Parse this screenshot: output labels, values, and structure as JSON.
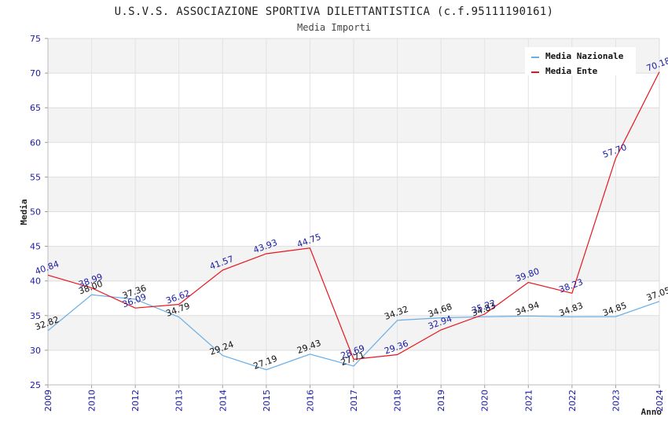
{
  "chart_data": {
    "type": "line",
    "title": "U.S.V.S. ASSOCIAZIONE SPORTIVA DILETTANTISTICA (c.f.95111190161)",
    "subtitle": "Media Importi",
    "xlabel": "Anno",
    "ylabel": "Media",
    "ylim": [
      25,
      75
    ],
    "yticks": [
      "25",
      "30",
      "35",
      "40",
      "45",
      "50",
      "55",
      "60",
      "65",
      "70",
      "75"
    ],
    "categories": [
      "2009",
      "2010",
      "2012",
      "2013",
      "2014",
      "2015",
      "2016",
      "2017",
      "2018",
      "2019",
      "2020",
      "2021",
      "2022",
      "2023",
      "2024"
    ],
    "series": [
      {
        "name": "Media Nazionale",
        "color": "#6aaee6",
        "values": [
          32.82,
          38.0,
          37.36,
          34.79,
          29.24,
          27.19,
          29.43,
          27.71,
          34.32,
          34.68,
          34.83,
          34.94,
          34.83,
          34.85,
          37.05
        ],
        "labels": [
          "32.82",
          "38.00",
          "37.36",
          "34.79",
          "29.24",
          "27.19",
          "29.43",
          "27.71",
          "34.32",
          "34.68",
          "34.83",
          "34.94",
          "34.83",
          "34.85",
          "37.05"
        ]
      },
      {
        "name": "Media Ente",
        "color": "#e8141c",
        "values": [
          40.84,
          38.99,
          36.09,
          36.62,
          41.57,
          43.93,
          44.75,
          28.69,
          29.36,
          32.94,
          35.22,
          39.8,
          38.23,
          57.7,
          70.18
        ],
        "labels": [
          "40.84",
          "38.99",
          "36.09",
          "36.62",
          "41.57",
          "43.93",
          "44.75",
          "28.69",
          "29.36",
          "32.94",
          "35.22",
          "39.80",
          "38.23",
          "57.70",
          "70.18"
        ]
      }
    ],
    "grid": true,
    "legend_position": "top-right"
  }
}
